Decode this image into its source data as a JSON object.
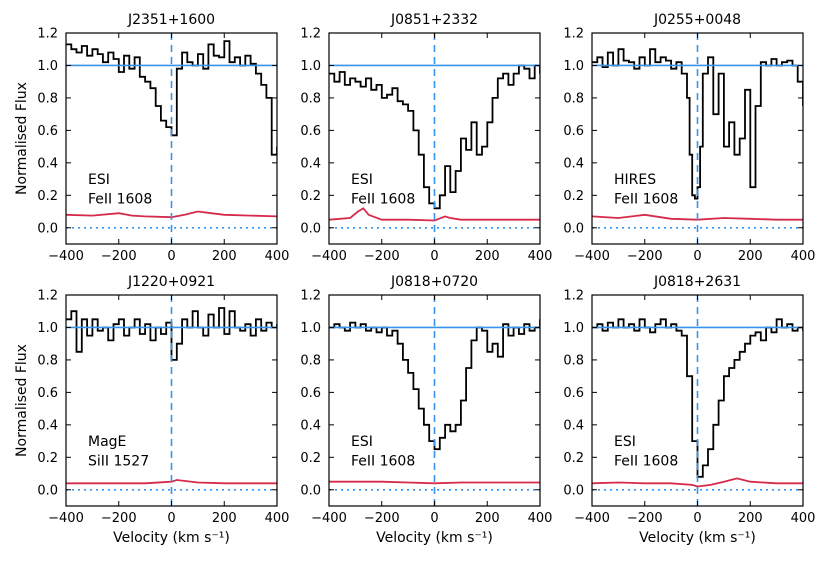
{
  "chart_data": [
    {
      "type": "line",
      "title": "J2351+1600",
      "instrument": "ESI",
      "transition": "FeII 1608",
      "xlabel": "",
      "ylabel": "Normalised Flux",
      "xlim": [
        -400,
        400
      ],
      "ylim": [
        -0.1,
        1.2
      ],
      "xticks": [
        -400,
        -200,
        0,
        200,
        400
      ],
      "yticks": [
        0.0,
        0.2,
        0.4,
        0.6,
        0.8,
        1.0,
        1.2
      ],
      "series": [
        {
          "name": "flux",
          "x": [
            -400,
            -380,
            -360,
            -340,
            -320,
            -300,
            -280,
            -260,
            -240,
            -220,
            -200,
            -180,
            -160,
            -140,
            -120,
            -100,
            -80,
            -60,
            -40,
            -20,
            0,
            20,
            40,
            60,
            80,
            100,
            120,
            140,
            160,
            180,
            200,
            220,
            240,
            260,
            280,
            300,
            320,
            340,
            360,
            380,
            400
          ],
          "values": [
            1.13,
            1.1,
            1.08,
            1.12,
            1.06,
            1.1,
            1.07,
            1.02,
            1.08,
            1.04,
            0.96,
            1.06,
            0.98,
            1.05,
            0.93,
            0.9,
            0.86,
            0.75,
            0.66,
            0.62,
            0.57,
            0.98,
            1.08,
            1.02,
            1.0,
            1.07,
            0.98,
            1.13,
            1.06,
            1.05,
            1.15,
            1.02,
            1.05,
            1.0,
            1.06,
            1.01,
            0.95,
            0.88,
            0.8,
            0.45,
            0.5
          ]
        },
        {
          "name": "error",
          "x": [
            -400,
            -300,
            -200,
            -150,
            -100,
            0,
            50,
            100,
            150,
            200,
            300,
            400
          ],
          "values": [
            0.08,
            0.075,
            0.09,
            0.075,
            0.07,
            0.065,
            0.08,
            0.1,
            0.09,
            0.08,
            0.075,
            0.07
          ]
        }
      ]
    },
    {
      "type": "line",
      "title": "J0851+2332",
      "instrument": "ESI",
      "transition": "FeII 1608",
      "xlabel": "",
      "ylabel": "",
      "xlim": [
        -400,
        400
      ],
      "ylim": [
        -0.1,
        1.2
      ],
      "xticks": [
        -400,
        -200,
        0,
        200,
        400
      ],
      "yticks": [
        0.0,
        0.2,
        0.4,
        0.6,
        0.8,
        1.0,
        1.2
      ],
      "series": [
        {
          "name": "flux",
          "x": [
            -400,
            -380,
            -360,
            -340,
            -320,
            -300,
            -280,
            -260,
            -240,
            -220,
            -200,
            -180,
            -160,
            -140,
            -120,
            -100,
            -80,
            -60,
            -40,
            -20,
            0,
            20,
            40,
            60,
            80,
            100,
            120,
            140,
            160,
            180,
            200,
            220,
            240,
            260,
            280,
            300,
            320,
            340,
            360,
            380,
            400
          ],
          "values": [
            0.95,
            0.9,
            0.96,
            0.88,
            0.92,
            0.9,
            0.87,
            0.92,
            0.85,
            0.88,
            0.8,
            0.82,
            0.86,
            0.78,
            0.76,
            0.72,
            0.6,
            0.45,
            0.25,
            0.15,
            0.12,
            0.2,
            0.38,
            0.22,
            0.35,
            0.55,
            0.48,
            0.65,
            0.45,
            0.5,
            0.65,
            0.8,
            0.92,
            0.95,
            0.88,
            0.95,
            1.0,
            0.98,
            0.92,
            1.0,
            0.95
          ]
        },
        {
          "name": "error",
          "x": [
            -400,
            -320,
            -290,
            -270,
            -250,
            -200,
            -100,
            0,
            40,
            60,
            100,
            200,
            300,
            400
          ],
          "values": [
            0.05,
            0.06,
            0.1,
            0.12,
            0.08,
            0.05,
            0.05,
            0.045,
            0.07,
            0.06,
            0.05,
            0.05,
            0.05,
            0.05
          ]
        }
      ]
    },
    {
      "type": "line",
      "title": "J0255+0048",
      "instrument": "HIRES",
      "transition": "FeII 1608",
      "xlabel": "",
      "ylabel": "",
      "xlim": [
        -400,
        400
      ],
      "ylim": [
        -0.1,
        1.2
      ],
      "xticks": [
        -400,
        -200,
        0,
        200,
        400
      ],
      "yticks": [
        0.0,
        0.2,
        0.4,
        0.6,
        0.8,
        1.0,
        1.2
      ],
      "series": [
        {
          "name": "flux",
          "x": [
            -400,
            -380,
            -360,
            -340,
            -320,
            -300,
            -280,
            -260,
            -240,
            -220,
            -200,
            -180,
            -160,
            -140,
            -120,
            -100,
            -80,
            -60,
            -40,
            -30,
            -20,
            -10,
            0,
            10,
            20,
            40,
            60,
            80,
            100,
            120,
            140,
            160,
            180,
            200,
            220,
            240,
            260,
            280,
            300,
            320,
            340,
            360,
            380,
            400
          ],
          "values": [
            1.02,
            1.05,
            0.99,
            1.08,
            1.0,
            1.1,
            1.03,
            1.02,
            0.98,
            1.05,
            1.0,
            1.1,
            1.02,
            1.05,
            1.03,
            0.98,
            1.02,
            0.95,
            0.8,
            0.45,
            0.2,
            0.18,
            0.25,
            0.5,
            0.95,
            1.05,
            0.7,
            0.95,
            0.5,
            0.65,
            0.45,
            0.55,
            0.85,
            0.25,
            0.75,
            1.02,
            1.0,
            1.04,
            1.0,
            1.02,
            1.03,
            1.0,
            0.9,
            0.75
          ]
        },
        {
          "name": "error",
          "x": [
            -400,
            -300,
            -200,
            -100,
            0,
            100,
            200,
            300,
            400
          ],
          "values": [
            0.07,
            0.06,
            0.08,
            0.055,
            0.05,
            0.06,
            0.055,
            0.05,
            0.05
          ]
        }
      ]
    },
    {
      "type": "line",
      "title": "J1220+0921",
      "instrument": "MagE",
      "transition": "SiII 1527",
      "xlabel": "Velocity (km s⁻¹)",
      "ylabel": "Normalised Flux",
      "xlim": [
        -400,
        400
      ],
      "ylim": [
        -0.1,
        1.2
      ],
      "xticks": [
        -400,
        -200,
        0,
        200,
        400
      ],
      "yticks": [
        0.0,
        0.2,
        0.4,
        0.6,
        0.8,
        1.0,
        1.2
      ],
      "series": [
        {
          "name": "flux",
          "x": [
            -400,
            -380,
            -360,
            -340,
            -320,
            -300,
            -280,
            -260,
            -240,
            -220,
            -200,
            -180,
            -160,
            -140,
            -120,
            -100,
            -80,
            -60,
            -40,
            -20,
            0,
            20,
            40,
            60,
            80,
            100,
            120,
            140,
            160,
            180,
            200,
            220,
            240,
            260,
            280,
            300,
            320,
            340,
            360,
            380,
            400
          ],
          "values": [
            1.05,
            1.1,
            0.85,
            1.05,
            0.95,
            1.05,
            0.98,
            1.0,
            0.92,
            1.02,
            1.05,
            0.95,
            1.0,
            1.05,
            0.96,
            1.02,
            0.92,
            1.0,
            0.96,
            1.03,
            0.8,
            0.9,
            1.05,
            1.0,
            1.1,
            1.0,
            0.95,
            1.08,
            1.0,
            1.12,
            0.96,
            1.1,
            1.0,
            0.98,
            1.02,
            0.95,
            1.05,
            0.98,
            1.03,
            1.0,
            1.02
          ]
        },
        {
          "name": "error",
          "x": [
            -400,
            -300,
            -200,
            -100,
            0,
            20,
            100,
            200,
            300,
            400
          ],
          "values": [
            0.04,
            0.04,
            0.04,
            0.04,
            0.05,
            0.06,
            0.045,
            0.04,
            0.04,
            0.04
          ]
        }
      ]
    },
    {
      "type": "line",
      "title": "J0818+0720",
      "instrument": "ESI",
      "transition": "FeII 1608",
      "xlabel": "Velocity (km s⁻¹)",
      "ylabel": "",
      "xlim": [
        -400,
        400
      ],
      "ylim": [
        -0.1,
        1.2
      ],
      "xticks": [
        -400,
        -200,
        0,
        200,
        400
      ],
      "yticks": [
        0.0,
        0.2,
        0.4,
        0.6,
        0.8,
        1.0,
        1.2
      ],
      "series": [
        {
          "name": "flux",
          "x": [
            -400,
            -380,
            -360,
            -340,
            -320,
            -300,
            -280,
            -260,
            -240,
            -220,
            -200,
            -180,
            -160,
            -140,
            -120,
            -100,
            -80,
            -60,
            -40,
            -20,
            0,
            20,
            40,
            60,
            80,
            100,
            120,
            140,
            160,
            180,
            200,
            220,
            240,
            260,
            280,
            300,
            320,
            340,
            360,
            380,
            400
          ],
          "values": [
            1.0,
            1.02,
            1.0,
            0.98,
            1.03,
            1.0,
            1.02,
            0.98,
            1.0,
            0.97,
            1.0,
            0.95,
            0.98,
            0.9,
            0.8,
            0.72,
            0.62,
            0.5,
            0.4,
            0.3,
            0.25,
            0.32,
            0.4,
            0.36,
            0.4,
            0.55,
            0.75,
            0.92,
            1.0,
            0.98,
            0.85,
            0.9,
            0.82,
            1.02,
            0.95,
            1.0,
            0.96,
            1.02,
            0.98,
            1.0,
            1.05
          ]
        },
        {
          "name": "error",
          "x": [
            -400,
            -200,
            -100,
            0,
            100,
            200,
            300,
            400
          ],
          "values": [
            0.05,
            0.05,
            0.045,
            0.04,
            0.045,
            0.045,
            0.045,
            0.045
          ]
        }
      ]
    },
    {
      "type": "line",
      "title": "J0818+2631",
      "instrument": "ESI",
      "transition": "FeII 1608",
      "xlabel": "Velocity (km s⁻¹)",
      "ylabel": "",
      "xlim": [
        -400,
        400
      ],
      "ylim": [
        -0.1,
        1.2
      ],
      "xticks": [
        -400,
        -200,
        0,
        200,
        400
      ],
      "yticks": [
        0.0,
        0.2,
        0.4,
        0.6,
        0.8,
        1.0,
        1.2
      ],
      "series": [
        {
          "name": "flux",
          "x": [
            -400,
            -380,
            -360,
            -340,
            -320,
            -300,
            -280,
            -260,
            -240,
            -220,
            -200,
            -180,
            -160,
            -140,
            -120,
            -100,
            -80,
            -60,
            -40,
            -20,
            0,
            20,
            40,
            60,
            80,
            100,
            120,
            140,
            160,
            180,
            200,
            220,
            240,
            260,
            280,
            300,
            320,
            340,
            360,
            380,
            400
          ],
          "values": [
            1.0,
            1.02,
            0.98,
            1.03,
            1.0,
            1.05,
            1.0,
            1.02,
            0.98,
            1.05,
            1.0,
            0.97,
            1.02,
            1.05,
            1.0,
            1.02,
            0.98,
            0.95,
            0.7,
            0.3,
            0.08,
            0.15,
            0.25,
            0.4,
            0.55,
            0.7,
            0.75,
            0.8,
            0.85,
            0.9,
            0.95,
            0.97,
            0.92,
            1.0,
            0.97,
            1.05,
            1.0,
            1.02,
            0.98,
            1.0,
            0.98
          ]
        },
        {
          "name": "error",
          "x": [
            -400,
            -300,
            -200,
            -100,
            -20,
            0,
            50,
            100,
            150,
            200,
            300,
            400
          ],
          "values": [
            0.04,
            0.045,
            0.04,
            0.04,
            0.03,
            0.02,
            0.03,
            0.05,
            0.07,
            0.05,
            0.04,
            0.04
          ]
        }
      ]
    }
  ]
}
